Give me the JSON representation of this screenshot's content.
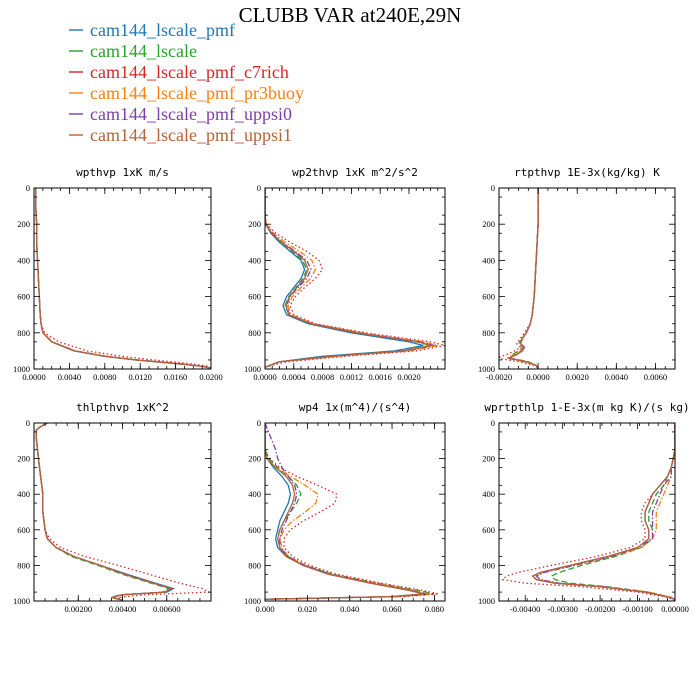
{
  "figure_title": "CLUBB VAR at240E,29N",
  "series": [
    {
      "name": "cam144_lscale_pmf",
      "color": "#1f77b4",
      "style": "solid"
    },
    {
      "name": "cam144_lscale",
      "color": "#2ca02c",
      "style": "dashed"
    },
    {
      "name": "cam144_lscale_pmf_c7rich",
      "color": "#d62728",
      "style": "dotted"
    },
    {
      "name": "cam144_lscale_pmf_pr3buoy",
      "color": "#ff7f0e",
      "style": "dashdot"
    },
    {
      "name": "cam144_lscale_pmf_uppsi0",
      "color": "#7e3fa3",
      "style": "dashdot"
    },
    {
      "name": "cam144_lscale_pmf_uppsi1",
      "color": "#b5623c",
      "style": "solid"
    }
  ],
  "chart_data": [
    {
      "type": "line",
      "title": "wpthvp  1xK m/s",
      "xlim": [
        0.0,
        0.02
      ],
      "ylim": [
        1000,
        0
      ],
      "xticks": [
        "0.0000",
        "0.0040",
        "0.0080",
        "0.0120",
        "0.0160",
        "0.0200"
      ],
      "xtick_values": [
        0.0,
        0.004,
        0.008,
        0.012,
        0.016,
        0.02
      ],
      "yticks": [
        "0",
        "200",
        "400",
        "600",
        "800",
        "1000"
      ],
      "ytick_values": [
        0,
        200,
        400,
        600,
        800,
        1000
      ],
      "y": [
        0,
        100,
        200,
        300,
        400,
        500,
        600,
        700,
        750,
        800,
        850,
        900,
        930,
        950,
        970,
        985,
        995
      ],
      "series_values": [
        [
          0.0002,
          0.0002,
          0.0003,
          0.0003,
          0.0004,
          0.0005,
          0.0006,
          0.0007,
          0.0008,
          0.001,
          0.002,
          0.0045,
          0.008,
          0.0115,
          0.016,
          0.019,
          0.0199
        ],
        [
          0.0002,
          0.0002,
          0.0003,
          0.0003,
          0.0004,
          0.0005,
          0.0006,
          0.0007,
          0.0008,
          0.001,
          0.002,
          0.0045,
          0.008,
          0.0115,
          0.016,
          0.019,
          0.0199
        ],
        [
          0.0002,
          0.0002,
          0.0003,
          0.0003,
          0.0004,
          0.0005,
          0.0006,
          0.0007,
          0.0008,
          0.0012,
          0.0028,
          0.006,
          0.01,
          0.0135,
          0.0175,
          0.0198,
          0.02
        ],
        [
          0.0002,
          0.0002,
          0.0003,
          0.0003,
          0.0004,
          0.0005,
          0.0006,
          0.0007,
          0.0008,
          0.001,
          0.0021,
          0.0047,
          0.0082,
          0.0117,
          0.0162,
          0.0191,
          0.0199
        ],
        [
          0.0002,
          0.0002,
          0.0003,
          0.0003,
          0.0004,
          0.0005,
          0.0006,
          0.0007,
          0.0008,
          0.001,
          0.002,
          0.0046,
          0.0081,
          0.0116,
          0.0161,
          0.019,
          0.0199
        ],
        [
          0.0002,
          0.0002,
          0.0003,
          0.0003,
          0.0004,
          0.0005,
          0.0006,
          0.0007,
          0.0008,
          0.001,
          0.002,
          0.0046,
          0.0081,
          0.0116,
          0.0161,
          0.019,
          0.0199
        ]
      ]
    },
    {
      "type": "line",
      "title": "wp2thvp  1xK m^2/s^2",
      "xlim": [
        0.0,
        0.0025
      ],
      "ylim": [
        1000,
        0
      ],
      "xticks": [
        "0.0000",
        "0.0004",
        "0.0008",
        "0.0012",
        "0.0016",
        "0.0020"
      ],
      "xtick_values": [
        0.0,
        0.0004,
        0.0008,
        0.0012,
        0.0016,
        0.002
      ],
      "yticks": [
        "0",
        "200",
        "400",
        "600",
        "800",
        "1000"
      ],
      "ytick_values": [
        0,
        200,
        400,
        600,
        800,
        1000
      ],
      "y": [
        0,
        150,
        200,
        250,
        300,
        350,
        400,
        450,
        500,
        550,
        600,
        650,
        700,
        750,
        800,
        850,
        870,
        900,
        930,
        960,
        990
      ],
      "series_values": [
        [
          0.0,
          0.0,
          1e-05,
          8e-05,
          0.0002,
          0.00035,
          0.0005,
          0.00055,
          0.0005,
          0.0004,
          0.0003,
          0.00025,
          0.0003,
          0.0006,
          0.0012,
          0.002,
          0.0022,
          0.0018,
          0.0008,
          0.0002,
          0.0
        ],
        [
          0.0,
          0.0,
          1e-05,
          9e-05,
          0.00022,
          0.00038,
          0.00052,
          0.00058,
          0.00053,
          0.00043,
          0.00033,
          0.00028,
          0.00033,
          0.00065,
          0.0013,
          0.0021,
          0.0023,
          0.0019,
          0.0009,
          0.0002,
          0.0
        ],
        [
          0.0,
          0.0,
          2e-05,
          0.00015,
          0.00035,
          0.00058,
          0.00075,
          0.0008,
          0.0007,
          0.00055,
          0.00042,
          0.00035,
          0.0004,
          0.0007,
          0.0014,
          0.0023,
          0.0025,
          0.0021,
          0.0011,
          0.0003,
          0.0
        ],
        [
          0.0,
          0.0,
          2e-05,
          0.00012,
          0.00028,
          0.00048,
          0.00065,
          0.0007,
          0.00063,
          0.0005,
          0.00038,
          0.00032,
          0.00036,
          0.00067,
          0.00135,
          0.0022,
          0.0024,
          0.002,
          0.001,
          0.0002,
          0.0
        ],
        [
          0.0,
          0.0,
          1e-05,
          0.0001,
          0.00024,
          0.00042,
          0.00058,
          0.00064,
          0.00058,
          0.00046,
          0.00035,
          0.0003,
          0.00034,
          0.00065,
          0.0013,
          0.00215,
          0.00235,
          0.00195,
          0.00095,
          0.0002,
          0.0
        ],
        [
          0.0,
          0.0,
          1e-05,
          9e-05,
          0.00023,
          0.0004,
          0.00055,
          0.0006,
          0.00055,
          0.00044,
          0.00034,
          0.00029,
          0.00033,
          0.00064,
          0.00128,
          0.00212,
          0.00232,
          0.00192,
          0.00093,
          0.0002,
          0.0
        ]
      ]
    },
    {
      "type": "line",
      "title": "rtpthvp  1E-3x(kg/kg) K",
      "xlim": [
        -0.002,
        0.007
      ],
      "ylim": [
        1000,
        0
      ],
      "xticks": [
        "-0.0020",
        "0.0000",
        "0.0020",
        "0.0040",
        "0.0060"
      ],
      "xtick_values": [
        -0.002,
        0.0,
        0.002,
        0.004,
        0.006
      ],
      "yticks": [
        "0",
        "200",
        "400",
        "600",
        "800",
        "1000"
      ],
      "ytick_values": [
        0,
        200,
        400,
        600,
        800,
        1000
      ],
      "y": [
        0,
        200,
        400,
        600,
        700,
        750,
        800,
        830,
        860,
        880,
        900,
        920,
        940,
        960,
        980,
        995
      ],
      "series_values": [
        [
          0.0,
          0.0,
          -0.0001,
          -0.0002,
          -0.0003,
          -0.0004,
          -0.0006,
          -0.0008,
          -0.0009,
          -0.0007,
          -0.0008,
          -0.0011,
          -0.0015,
          -0.0006,
          -0.0001,
          0.0
        ],
        [
          0.0,
          0.0,
          -0.0001,
          -0.0002,
          -0.0003,
          -0.0004,
          -0.0006,
          -0.0008,
          -0.001,
          -0.0008,
          -0.001,
          -0.0013,
          -0.0014,
          -0.0005,
          -0.0001,
          0.0
        ],
        [
          0.0,
          0.0,
          -0.0001,
          -0.0002,
          -0.0003,
          -0.0004,
          -0.0007,
          -0.0009,
          -0.0011,
          -0.0009,
          -0.0012,
          -0.0016,
          -0.0021,
          -0.001,
          -0.0002,
          0.0
        ],
        [
          0.0,
          0.0,
          -0.0001,
          -0.0002,
          -0.0003,
          -0.0004,
          -0.0006,
          -0.0008,
          -0.0009,
          -0.0008,
          -0.0009,
          -0.0012,
          -0.0016,
          -0.0007,
          -0.0001,
          0.0
        ],
        [
          0.0,
          0.0,
          -0.0001,
          -0.0002,
          -0.0003,
          -0.0004,
          -0.0006,
          -0.0008,
          -0.0009,
          -0.0007,
          -0.0009,
          -0.0011,
          -0.0015,
          -0.0006,
          -0.0001,
          0.0
        ],
        [
          0.0,
          0.0,
          -0.0001,
          -0.0002,
          -0.0003,
          -0.0004,
          -0.0006,
          -0.0008,
          -0.0009,
          -0.0007,
          -0.0008,
          -0.0011,
          -0.0015,
          -0.0006,
          -0.0001,
          0.0
        ]
      ]
    },
    {
      "type": "line",
      "title": "thlpthvp  1xK^2",
      "xlim": [
        0.0,
        0.008
      ],
      "ylim": [
        1000,
        0
      ],
      "xticks": [
        "0.00200",
        "0.00400",
        "0.00600"
      ],
      "xtick_values": [
        0.002,
        0.004,
        0.006
      ],
      "yticks": [
        "0",
        "200",
        "400",
        "600",
        "800",
        "1000"
      ],
      "ytick_values": [
        0,
        200,
        400,
        600,
        800,
        1000
      ],
      "y": [
        0,
        20,
        40,
        80,
        200,
        300,
        400,
        450,
        500,
        600,
        650,
        700,
        750,
        800,
        850,
        900,
        930,
        950,
        965,
        980,
        995
      ],
      "series_values": [
        [
          0.0006,
          0.0003,
          0.0001,
          0.0001,
          0.0002,
          0.0003,
          0.0004,
          0.0004,
          0.0004,
          0.0005,
          0.0006,
          0.001,
          0.0018,
          0.003,
          0.0042,
          0.0055,
          0.0063,
          0.006,
          0.004,
          0.0035,
          0.004
        ],
        [
          0.0006,
          0.0003,
          0.0001,
          0.0001,
          0.0002,
          0.0003,
          0.0004,
          0.0004,
          0.0004,
          0.0005,
          0.0006,
          0.001,
          0.0017,
          0.0029,
          0.004,
          0.0053,
          0.0061,
          0.0058,
          0.0039,
          0.0035,
          0.004
        ],
        [
          0.0006,
          0.0003,
          0.0001,
          0.0001,
          0.0002,
          0.0003,
          0.0004,
          0.0004,
          0.0004,
          0.0005,
          0.0007,
          0.0012,
          0.0023,
          0.0038,
          0.0052,
          0.0066,
          0.0076,
          0.0079,
          0.005,
          0.0038,
          0.004
        ],
        [
          0.0006,
          0.0003,
          0.0001,
          0.0001,
          0.0002,
          0.0003,
          0.0004,
          0.0004,
          0.0004,
          0.0005,
          0.0006,
          0.001,
          0.0018,
          0.003,
          0.0041,
          0.0054,
          0.0062,
          0.0059,
          0.004,
          0.0035,
          0.004
        ],
        [
          0.0006,
          0.0003,
          0.0001,
          0.0001,
          0.0002,
          0.0003,
          0.0004,
          0.0004,
          0.0004,
          0.0005,
          0.0006,
          0.001,
          0.0018,
          0.003,
          0.0041,
          0.0054,
          0.0062,
          0.0059,
          0.004,
          0.0035,
          0.004
        ],
        [
          0.0006,
          0.0003,
          0.0001,
          0.0001,
          0.0002,
          0.0003,
          0.0004,
          0.0004,
          0.0004,
          0.0005,
          0.0006,
          0.001,
          0.0018,
          0.003,
          0.0041,
          0.0054,
          0.0062,
          0.0059,
          0.004,
          0.0035,
          0.004
        ]
      ]
    },
    {
      "type": "line",
      "title": "wp4  1x(m^4)/(s^4)",
      "xlim": [
        0.0,
        0.085
      ],
      "ylim": [
        1000,
        0
      ],
      "xticks": [
        "0.000",
        "0.020",
        "0.040",
        "0.060",
        "0.080"
      ],
      "xtick_values": [
        0.0,
        0.02,
        0.04,
        0.06,
        0.08
      ],
      "yticks": [
        "0",
        "200",
        "400",
        "600",
        "800",
        "1000"
      ],
      "ytick_values": [
        0,
        200,
        400,
        600,
        800,
        1000
      ],
      "y": [
        0,
        150,
        200,
        250,
        300,
        350,
        400,
        450,
        500,
        550,
        600,
        650,
        700,
        750,
        800,
        850,
        900,
        940,
        960,
        975,
        990
      ],
      "series_values": [
        [
          0.0,
          0.0,
          0.001,
          0.004,
          0.008,
          0.011,
          0.012,
          0.011,
          0.009,
          0.007,
          0.006,
          0.005,
          0.006,
          0.01,
          0.018,
          0.03,
          0.05,
          0.068,
          0.075,
          0.06,
          0.0
        ],
        [
          0.0,
          0.0,
          0.002,
          0.006,
          0.011,
          0.015,
          0.017,
          0.015,
          0.012,
          0.009,
          0.007,
          0.006,
          0.007,
          0.011,
          0.019,
          0.032,
          0.053,
          0.072,
          0.08,
          0.064,
          0.0
        ],
        [
          0.0,
          0.0,
          0.002,
          0.007,
          0.015,
          0.025,
          0.034,
          0.033,
          0.026,
          0.018,
          0.012,
          0.009,
          0.009,
          0.013,
          0.021,
          0.034,
          0.055,
          0.074,
          0.082,
          0.066,
          0.0
        ],
        [
          0.0,
          0.0,
          0.001,
          0.005,
          0.012,
          0.019,
          0.025,
          0.024,
          0.019,
          0.013,
          0.009,
          0.007,
          0.008,
          0.011,
          0.019,
          0.031,
          0.052,
          0.07,
          0.078,
          0.062,
          0.0
        ],
        [
          0.0,
          0.005,
          0.006,
          0.008,
          0.011,
          0.014,
          0.015,
          0.014,
          0.012,
          0.01,
          0.008,
          0.007,
          0.007,
          0.011,
          0.019,
          0.031,
          0.051,
          0.069,
          0.076,
          0.061,
          0.0
        ],
        [
          0.0,
          0.0,
          0.001,
          0.005,
          0.01,
          0.013,
          0.014,
          0.013,
          0.011,
          0.009,
          0.007,
          0.006,
          0.007,
          0.01,
          0.018,
          0.03,
          0.05,
          0.068,
          0.075,
          0.06,
          0.0
        ]
      ]
    },
    {
      "type": "line",
      "title": "wprtpthlp  1-E-3x(m kg K)/(s kg)",
      "xlim": [
        -0.0047,
        0.0
      ],
      "ylim": [
        1000,
        0
      ],
      "xticks": [
        "-0.00400",
        "-0.00300",
        "-0.00200",
        "-0.00100",
        "0.00000"
      ],
      "xtick_values": [
        -0.004,
        -0.003,
        -0.002,
        -0.001,
        0.0
      ],
      "yticks": [
        "0",
        "200",
        "400",
        "600",
        "800",
        "1000"
      ],
      "ytick_values": [
        0,
        200,
        400,
        600,
        800,
        1000
      ],
      "y": [
        0,
        150,
        250,
        300,
        350,
        400,
        450,
        500,
        550,
        600,
        650,
        700,
        750,
        800,
        840,
        860,
        880,
        900,
        920,
        950,
        980,
        995
      ],
      "series_values": [
        [
          0.0,
          0.0,
          -0.0001,
          -0.0002,
          -0.0004,
          -0.0006,
          -0.0007,
          -0.0008,
          -0.0008,
          -0.0007,
          -0.0007,
          -0.001,
          -0.0018,
          -0.0028,
          -0.0036,
          -0.0038,
          -0.0037,
          -0.0032,
          -0.002,
          -0.0008,
          -0.0001,
          0.0
        ],
        [
          0.0,
          0.0,
          -0.0001,
          -0.0002,
          -0.0003,
          -0.0005,
          -0.0006,
          -0.0007,
          -0.0007,
          -0.0006,
          -0.0006,
          -0.0009,
          -0.0016,
          -0.0025,
          -0.0031,
          -0.0033,
          -0.0032,
          -0.0028,
          -0.0018,
          -0.0007,
          -0.0001,
          0.0
        ],
        [
          0.0,
          0.0,
          -0.0001,
          -0.0002,
          -0.0004,
          -0.0006,
          -0.0008,
          -0.0009,
          -0.0009,
          -0.0008,
          -0.0008,
          -0.0012,
          -0.0021,
          -0.0033,
          -0.0042,
          -0.0045,
          -0.0046,
          -0.004,
          -0.0025,
          -0.001,
          -0.0002,
          0.0
        ],
        [
          0.0,
          0.0,
          -0.0001,
          -0.0001,
          -0.0002,
          -0.0003,
          -0.0004,
          -0.0005,
          -0.0005,
          -0.0005,
          -0.0006,
          -0.0009,
          -0.0017,
          -0.0027,
          -0.0035,
          -0.0037,
          -0.0036,
          -0.0031,
          -0.0019,
          -0.0007,
          -0.0001,
          0.0
        ],
        [
          0.0,
          0.0,
          -0.0001,
          -0.0001,
          -0.0003,
          -0.0004,
          -0.0005,
          -0.0006,
          -0.0006,
          -0.0006,
          -0.0006,
          -0.001,
          -0.0017,
          -0.0027,
          -0.0035,
          -0.0037,
          -0.0036,
          -0.0031,
          -0.0019,
          -0.0008,
          -0.0001,
          0.0
        ],
        [
          0.0,
          0.0,
          -0.0001,
          -0.0002,
          -0.0004,
          -0.0006,
          -0.0007,
          -0.0008,
          -0.0008,
          -0.0007,
          -0.0007,
          -0.001,
          -0.0018,
          -0.0028,
          -0.0036,
          -0.0038,
          -0.0037,
          -0.0032,
          -0.002,
          -0.0008,
          -0.0001,
          0.0
        ]
      ]
    }
  ]
}
